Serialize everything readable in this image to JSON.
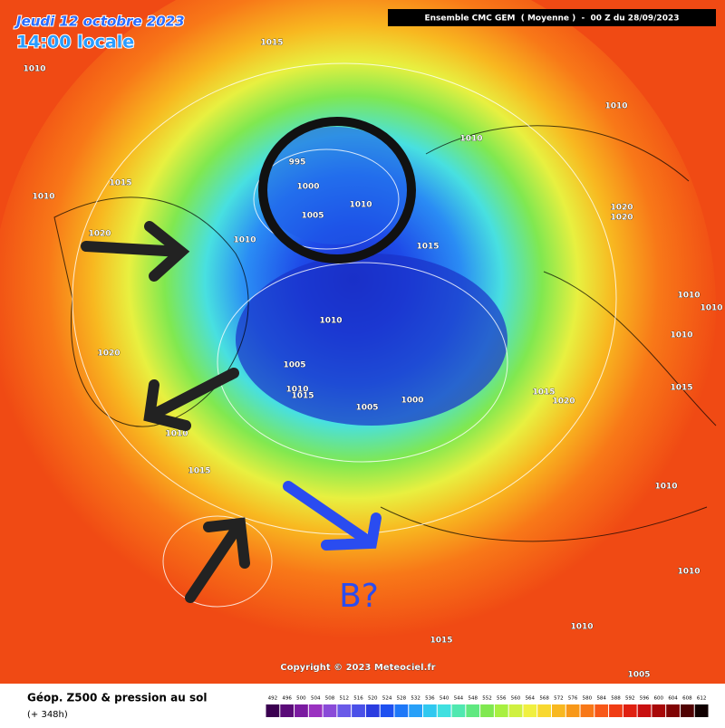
{
  "header": {
    "date": "Jeudi 12 octobre 2023",
    "time": "14:00 locale",
    "model": "Ensemble CMC GEM  ( Moyenne )  -  00 Z du 28/09/2023"
  },
  "map": {
    "isobar_labels": [
      1015,
      1010,
      1010,
      1010,
      995,
      1000,
      1005,
      1010,
      1015,
      1010,
      1020,
      1010,
      1015,
      1020,
      1020,
      1010,
      1010,
      1010,
      1010,
      1020,
      1005,
      1010,
      1015,
      1000,
      1005,
      1015,
      1020,
      1015,
      1010,
      1015,
      1010,
      1010,
      1010,
      1015,
      1005
    ],
    "annotation": "B?",
    "copyright": "Copyright © 2023 Meteociel.fr"
  },
  "legend": {
    "title": "Géop. Z500 & pression au sol",
    "subtitle": "(+ 348h)",
    "scale": {
      "labels": [
        492,
        496,
        500,
        504,
        508,
        512,
        516,
        520,
        524,
        528,
        532,
        536,
        540,
        544,
        548,
        552,
        556,
        560,
        564,
        568,
        572,
        576,
        580,
        584,
        588,
        592,
        596,
        600,
        604,
        608,
        612
      ],
      "colors": [
        "#3a0050",
        "#5a0a78",
        "#7a1aa0",
        "#9a32c0",
        "#8a4ad8",
        "#6a5ae8",
        "#4a50e8",
        "#2a3ce0",
        "#1e50f0",
        "#1e78f8",
        "#28a0f8",
        "#30c8f0",
        "#40e0e0",
        "#50e8b0",
        "#60e880",
        "#80e850",
        "#a8f040",
        "#d0f040",
        "#f0f040",
        "#f8d830",
        "#f8b820",
        "#f89818",
        "#f87818",
        "#f85818",
        "#f03c14",
        "#e02010",
        "#c81010",
        "#a80808",
        "#800404",
        "#500202",
        "#100000"
      ]
    }
  }
}
